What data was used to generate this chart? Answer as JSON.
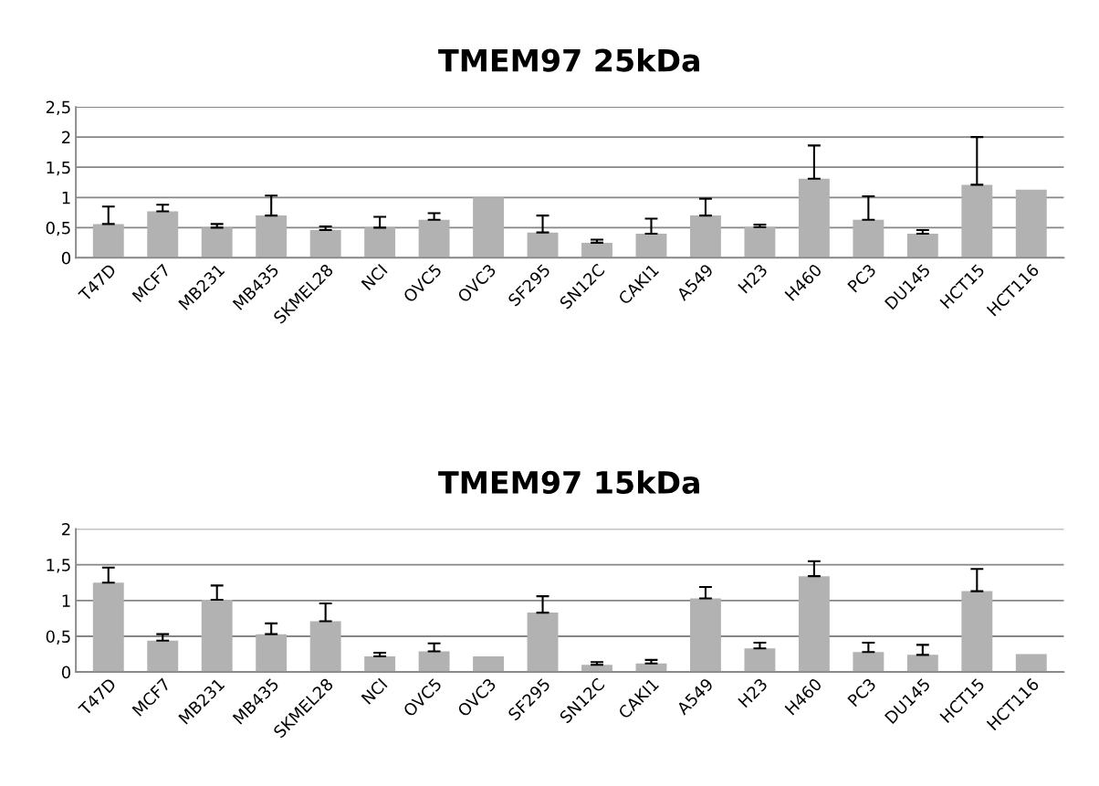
{
  "chart_data": [
    {
      "type": "bar",
      "title": "TMEM97 25kDa",
      "categories": [
        "T47D",
        "MCF7",
        "MB231",
        "MB435",
        "SKMEL28",
        "NCI",
        "OVC5",
        "OVC3",
        "SF295",
        "SN12C",
        "CAKI1",
        "A549",
        "H23",
        "H460",
        "PC3",
        "DU145",
        "HCT15",
        "HCT116"
      ],
      "values": [
        0.56,
        0.77,
        0.5,
        0.7,
        0.46,
        0.5,
        0.63,
        1.0,
        0.42,
        0.25,
        0.4,
        0.7,
        0.51,
        1.31,
        0.63,
        0.4,
        1.21,
        1.13
      ],
      "errors": [
        [
          0.56,
          0.85
        ],
        [
          0.77,
          0.88
        ],
        [
          0.5,
          0.56
        ],
        [
          0.7,
          1.03
        ],
        [
          0.46,
          0.52
        ],
        [
          0.5,
          0.68
        ],
        [
          0.63,
          0.74
        ],
        null,
        [
          0.42,
          0.7
        ],
        [
          0.25,
          0.3
        ],
        [
          0.4,
          0.65
        ],
        [
          0.7,
          0.98
        ],
        [
          0.51,
          0.55
        ],
        [
          1.31,
          1.86
        ],
        [
          0.63,
          1.02
        ],
        [
          0.4,
          0.46
        ],
        [
          1.21,
          2.0
        ],
        null
      ],
      "color": "#b2b2b2",
      "ylim": [
        0,
        2.5
      ],
      "yticks": [
        0,
        {
          "value": 0.5,
          "label": "0,5"
        },
        1,
        {
          "value": 1.5,
          "label": "1,5"
        },
        2,
        {
          "value": 2.5,
          "label": "2,5"
        }
      ],
      "grid": "y",
      "legend": false
    },
    {
      "type": "bar",
      "title": "TMEM97 15kDa",
      "categories": [
        "T47D",
        "MCF7",
        "MB231",
        "MB435",
        "SKMEL28",
        "NCI",
        "OVC5",
        "OVC3",
        "SF295",
        "SN12C",
        "CAKI1",
        "A549",
        "H23",
        "H460",
        "PC3",
        "DU145",
        "HCT15",
        "HCT116"
      ],
      "values": [
        1.25,
        0.44,
        1.01,
        0.53,
        0.71,
        0.22,
        0.29,
        0.22,
        0.83,
        0.1,
        0.12,
        1.03,
        0.33,
        1.34,
        0.28,
        0.24,
        1.13,
        0.25
      ],
      "errors": [
        [
          1.25,
          1.46
        ],
        [
          0.44,
          0.53
        ],
        [
          1.01,
          1.21
        ],
        [
          0.53,
          0.68
        ],
        [
          0.71,
          0.96
        ],
        [
          0.22,
          0.27
        ],
        [
          0.29,
          0.4
        ],
        null,
        [
          0.83,
          1.06
        ],
        [
          0.1,
          0.14
        ],
        [
          0.12,
          0.17
        ],
        [
          1.03,
          1.19
        ],
        [
          0.33,
          0.41
        ],
        [
          1.34,
          1.55
        ],
        [
          0.28,
          0.41
        ],
        [
          0.24,
          0.38
        ],
        [
          1.13,
          1.44
        ],
        null
      ],
      "color": "#b2b2b2",
      "ylim": [
        0,
        2
      ],
      "yticks": [
        0,
        {
          "value": 0.5,
          "label": "0,5"
        },
        1,
        {
          "value": 1.5,
          "label": "1,5"
        },
        2
      ],
      "grid": "y",
      "legend": false
    }
  ]
}
